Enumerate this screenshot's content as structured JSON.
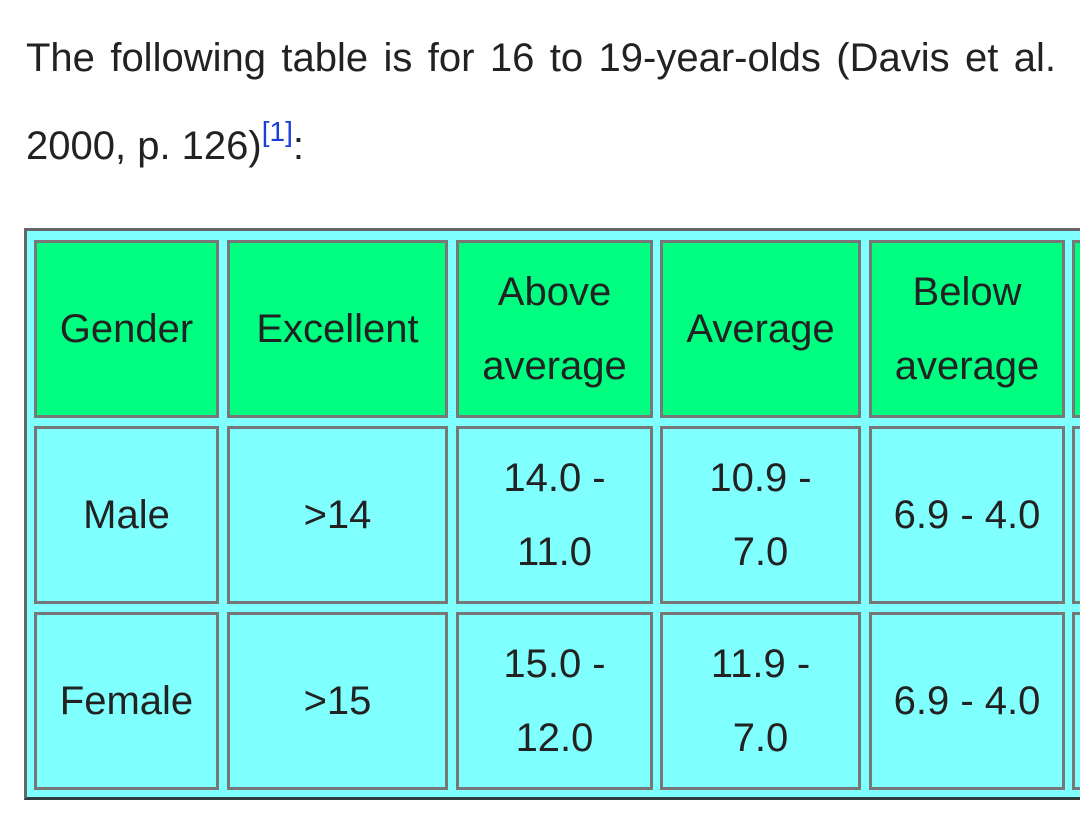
{
  "paragraph": {
    "text": "The following table is for 16 to 19-year-olds (Davis et al. 2000, p. 126)",
    "reference": "[1]",
    "punctuation": ":"
  },
  "table": {
    "header": [
      "Gender",
      "Excellent",
      "Above average",
      "Average",
      "Below average"
    ],
    "rows": [
      [
        "Male",
        ">14",
        "14.0 - 11.0",
        "10.9 - 7.0",
        "6.9 - 4.0"
      ],
      [
        "Female",
        ">15",
        "15.0 - 12.0",
        "11.9 - 7.0",
        "6.9 - 4.0"
      ]
    ]
  }
}
